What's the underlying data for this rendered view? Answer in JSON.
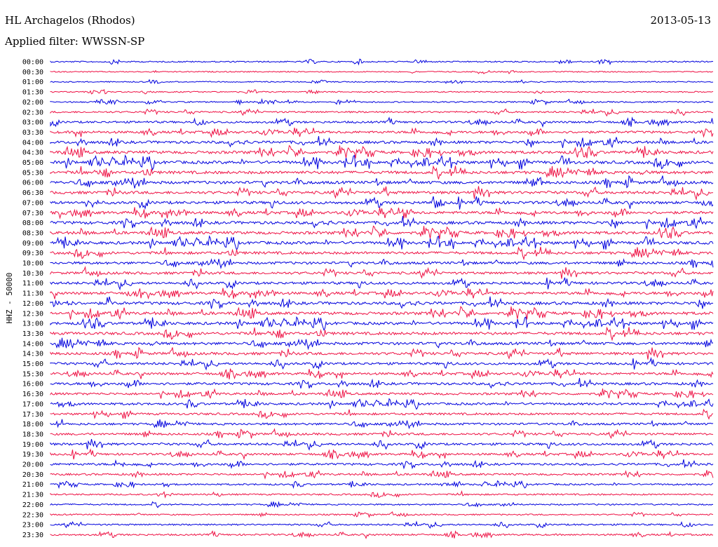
{
  "header": {
    "station": "HL Archagelos (Rhodos)",
    "date": "2013-05-13",
    "filter": "Applied filter: WWSSN-SP"
  },
  "chart_data": {
    "type": "line",
    "ylabel": "HHZ - 50000",
    "colors": {
      "even_line": "#0000dd",
      "odd_line": "#ee1144"
    },
    "rows": [
      {
        "label": "00:00",
        "activity": 0.2
      },
      {
        "label": "00:30",
        "activity": 0.1
      },
      {
        "label": "01:00",
        "activity": 0.1
      },
      {
        "label": "01:30",
        "activity": 0.15
      },
      {
        "label": "02:00",
        "activity": 0.2
      },
      {
        "label": "02:30",
        "activity": 0.35
      },
      {
        "label": "03:00",
        "activity": 0.5
      },
      {
        "label": "03:30",
        "activity": 0.65
      },
      {
        "label": "04:00",
        "activity": 0.75
      },
      {
        "label": "04:30",
        "activity": 0.85
      },
      {
        "label": "05:00",
        "activity": 0.9
      },
      {
        "label": "05:30",
        "activity": 0.85
      },
      {
        "label": "06:00",
        "activity": 0.85
      },
      {
        "label": "06:30",
        "activity": 0.8
      },
      {
        "label": "07:00",
        "activity": 0.8
      },
      {
        "label": "07:30",
        "activity": 0.8
      },
      {
        "label": "08:00",
        "activity": 0.85
      },
      {
        "label": "08:30",
        "activity": 0.85
      },
      {
        "label": "09:00",
        "activity": 0.85
      },
      {
        "label": "09:30",
        "activity": 0.75
      },
      {
        "label": "10:00",
        "activity": 0.7
      },
      {
        "label": "10:30",
        "activity": 0.7
      },
      {
        "label": "11:00",
        "activity": 0.7
      },
      {
        "label": "11:30",
        "activity": 0.75
      },
      {
        "label": "12:00",
        "activity": 0.85
      },
      {
        "label": "12:30",
        "activity": 0.85
      },
      {
        "label": "13:00",
        "activity": 0.8
      },
      {
        "label": "13:30",
        "activity": 0.8
      },
      {
        "label": "14:00",
        "activity": 0.75
      },
      {
        "label": "14:30",
        "activity": 0.75
      },
      {
        "label": "15:00",
        "activity": 0.65
      },
      {
        "label": "15:30",
        "activity": 0.65
      },
      {
        "label": "16:00",
        "activity": 0.7
      },
      {
        "label": "16:30",
        "activity": 0.6
      },
      {
        "label": "17:00",
        "activity": 0.6
      },
      {
        "label": "17:30",
        "activity": 0.55
      },
      {
        "label": "18:00",
        "activity": 0.55
      },
      {
        "label": "18:30",
        "activity": 0.55
      },
      {
        "label": "19:00",
        "activity": 0.6
      },
      {
        "label": "19:30",
        "activity": 0.55
      },
      {
        "label": "20:00",
        "activity": 0.55
      },
      {
        "label": "20:30",
        "activity": 0.45
      },
      {
        "label": "21:00",
        "activity": 0.35
      },
      {
        "label": "21:30",
        "activity": 0.3
      },
      {
        "label": "22:00",
        "activity": 0.25
      },
      {
        "label": "22:30",
        "activity": 0.2
      },
      {
        "label": "23:00",
        "activity": 0.3
      },
      {
        "label": "23:30",
        "activity": 0.35
      }
    ]
  }
}
